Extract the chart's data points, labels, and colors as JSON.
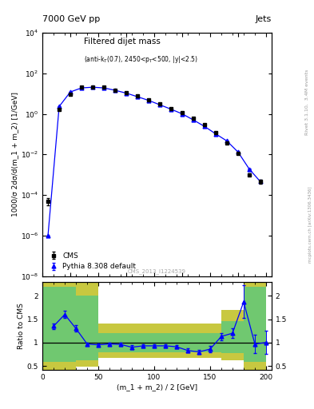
{
  "title_top": "7000 GeV pp",
  "title_right": "Jets",
  "plot_title": "Filtered dijet mass",
  "plot_subtitle": "(anti-k_{T}(0.7), 2450<p_{T}<500, |y|<2.5)",
  "ylabel_main": "1000/σ 2dσ/d(m_1 + m_2) [1/GeV]",
  "ylabel_ratio": "Ratio to CMS",
  "xlabel": "(m_1 + m_2) / 2 [GeV]",
  "cms_x": [
    5,
    15,
    25,
    35,
    45,
    55,
    65,
    75,
    85,
    95,
    105,
    115,
    125,
    135,
    145,
    155,
    165,
    175,
    185,
    195
  ],
  "cms_y": [
    5e-05,
    1.7,
    9.5,
    20,
    21,
    20,
    15,
    11,
    7.5,
    5.0,
    3.0,
    1.8,
    1.1,
    0.6,
    0.3,
    0.12,
    0.038,
    0.011,
    0.001,
    0.00045
  ],
  "cms_yerr_lo": [
    2e-05,
    0.15,
    0.8,
    1.5,
    1.5,
    1.5,
    1.2,
    0.9,
    0.6,
    0.4,
    0.25,
    0.15,
    0.09,
    0.05,
    0.025,
    0.01,
    0.003,
    0.001,
    0.00015,
    0.0001
  ],
  "cms_yerr_hi": [
    2e-05,
    0.15,
    0.8,
    1.5,
    1.5,
    1.5,
    1.2,
    0.9,
    0.6,
    0.4,
    0.25,
    0.15,
    0.09,
    0.05,
    0.025,
    0.01,
    0.003,
    0.001,
    0.00015,
    0.0001
  ],
  "pythia_x": [
    5,
    15,
    25,
    35,
    45,
    55,
    65,
    75,
    85,
    95,
    105,
    115,
    125,
    135,
    145,
    155,
    165,
    175,
    185,
    195
  ],
  "pythia_y": [
    1e-06,
    2.3,
    12,
    19,
    20.5,
    19,
    14.5,
    10.5,
    7.0,
    4.6,
    2.8,
    1.7,
    1.0,
    0.5,
    0.24,
    0.103,
    0.046,
    0.013,
    0.0019,
    0.00045
  ],
  "pythia_yerr_lo": [
    0,
    0.05,
    0.3,
    0.5,
    0.6,
    0.5,
    0.4,
    0.3,
    0.2,
    0.15,
    0.1,
    0.06,
    0.04,
    0.02,
    0.01,
    0.004,
    0.002,
    0.0006,
    0.0001,
    5e-05
  ],
  "pythia_yerr_hi": [
    0,
    0.05,
    0.3,
    0.5,
    0.6,
    0.5,
    0.4,
    0.3,
    0.2,
    0.15,
    0.1,
    0.06,
    0.04,
    0.02,
    0.01,
    0.004,
    0.002,
    0.0006,
    0.0001,
    5e-05
  ],
  "ratio_x": [
    10,
    20,
    30,
    40,
    50,
    60,
    70,
    80,
    90,
    100,
    110,
    120,
    130,
    140,
    150,
    160,
    170,
    180,
    190,
    200
  ],
  "ratio_y": [
    1.35,
    1.6,
    1.3,
    0.97,
    0.95,
    0.97,
    0.96,
    0.9,
    0.93,
    0.93,
    0.93,
    0.91,
    0.83,
    0.8,
    0.86,
    1.13,
    1.2,
    1.87,
    0.97,
    1.0
  ],
  "ratio_yerr_lo": [
    0.06,
    0.08,
    0.07,
    0.03,
    0.03,
    0.03,
    0.03,
    0.04,
    0.04,
    0.04,
    0.04,
    0.04,
    0.04,
    0.04,
    0.07,
    0.08,
    0.1,
    0.35,
    0.2,
    0.25
  ],
  "ratio_yerr_hi": [
    0.06,
    0.08,
    0.07,
    0.03,
    0.03,
    0.03,
    0.03,
    0.04,
    0.04,
    0.04,
    0.04,
    0.04,
    0.04,
    0.04,
    0.07,
    0.08,
    0.1,
    0.35,
    0.2,
    0.25
  ],
  "band_x_edges": [
    0,
    10,
    30,
    50,
    130,
    160,
    180,
    200
  ],
  "green_lo": [
    0.58,
    0.58,
    0.62,
    0.8,
    0.8,
    0.78,
    0.58,
    0.58
  ],
  "green_hi": [
    2.2,
    2.2,
    2.0,
    1.2,
    1.2,
    1.45,
    2.2,
    2.2
  ],
  "yellow_lo": [
    0.38,
    0.38,
    0.48,
    0.68,
    0.68,
    0.62,
    0.38,
    0.38
  ],
  "yellow_hi": [
    2.55,
    2.55,
    2.4,
    1.4,
    1.4,
    1.7,
    2.55,
    2.55
  ],
  "cms_color": "black",
  "pythia_color": "blue",
  "green_color": "#70c870",
  "yellow_color": "#c8c840",
  "main_ylim_lo": 1e-08,
  "main_ylim_hi": 10000.0,
  "ratio_ylim_lo": 0.41,
  "ratio_ylim_hi": 2.29,
  "xlim_lo": 0,
  "xlim_hi": 205,
  "watermark": "CMS_2013_I1224539",
  "rivet_label": "Rivet 3.1.10,  3.4M events",
  "arxiv_label": "mcplots.cern.ch [arXiv:1306.3436]"
}
